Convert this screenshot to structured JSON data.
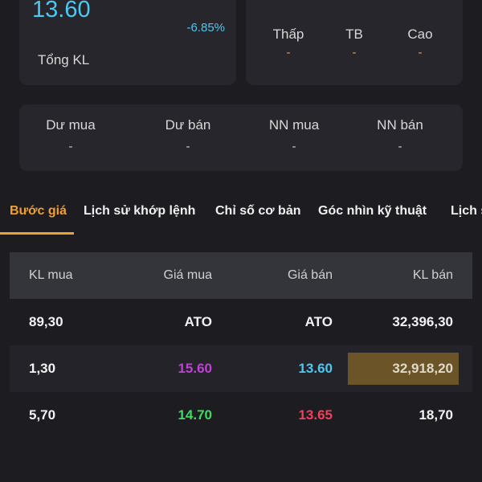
{
  "price": {
    "value": "13.60",
    "change": "-6.85%",
    "total_volume_label": "Tổng KL"
  },
  "range": [
    {
      "label": "Thấp",
      "value": "-"
    },
    {
      "label": "TB",
      "value": "-"
    },
    {
      "label": "Cao",
      "value": "-"
    }
  ],
  "flow": [
    {
      "label": "Dư mua",
      "value": "-"
    },
    {
      "label": "Dư bán",
      "value": "-"
    },
    {
      "label": "NN mua",
      "value": "-"
    },
    {
      "label": "NN bán",
      "value": "-"
    }
  ],
  "tabs": [
    "Bước giá",
    "Lịch sử khớp lệnh",
    "Chỉ số cơ bản",
    "Góc nhìn kỹ thuật",
    "Lịch s"
  ],
  "table": {
    "headers": [
      "KL mua",
      "Giá mua",
      "Giá bán",
      "KL bán"
    ],
    "rows": [
      [
        "89,30",
        "ATO",
        "ATO",
        "32,396,30"
      ],
      [
        "1,30",
        "15.60",
        "13.60",
        "32,918,20"
      ],
      [
        "5,70",
        "14.70",
        "13.65",
        "18,70"
      ]
    ]
  },
  "colors": {
    "accent": "#f0a030",
    "reference": "#4cc9f0",
    "ceiling": "#c040d8",
    "up": "#3ddc60",
    "down": "#f0405a",
    "highlight": "#6b5528"
  }
}
